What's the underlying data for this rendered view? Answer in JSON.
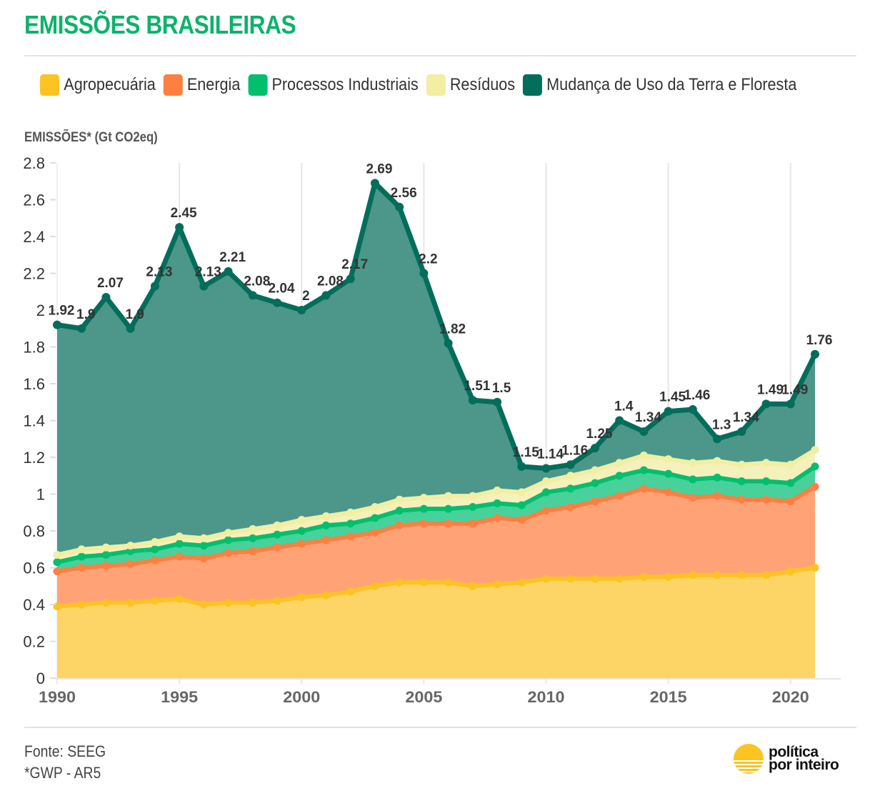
{
  "header": {
    "title": "EMISSÕES BRASILEIRAS"
  },
  "legend": [
    {
      "label": "Agropecuária",
      "color": "#fcc323"
    },
    {
      "label": "Energia",
      "color": "#ff7f41"
    },
    {
      "label": "Processos Industriais",
      "color": "#00bf6f"
    },
    {
      "label": "Resíduos",
      "color": "#f2eea2"
    },
    {
      "label": "Mudança de Uso da Terra e Floresta",
      "color": "#006e5b"
    }
  ],
  "footer": {
    "source": "Fonte: SEEG",
    "note": "*GWP - AR5"
  },
  "logo": {
    "line1": "política",
    "line2": "por inteiro",
    "icon": "sun-logo-icon"
  },
  "chart_data": {
    "type": "area",
    "stacked": true,
    "title": "EMISSÕES BRASILEIRAS",
    "ylabel": "EMISSÕES* (Gt CO2eq)",
    "xlabel": "",
    "ylim": [
      0,
      2.8
    ],
    "yticks": [
      "0",
      "0.2",
      "0.4",
      "0.6",
      "0.8",
      "1",
      "1.2",
      "1.4",
      "1.6",
      "1.8",
      "2",
      "2.2",
      "2.4",
      "2.6",
      "2.8"
    ],
    "xticks": [
      "1990",
      "1995",
      "2000",
      "2005",
      "2010",
      "2015",
      "2020"
    ],
    "grid": "vertical",
    "legend_position": "top",
    "value_mode": "cumulative stack top per year",
    "x": [
      1990,
      1991,
      1992,
      1993,
      1994,
      1995,
      1996,
      1997,
      1998,
      1999,
      2000,
      2001,
      2002,
      2003,
      2004,
      2005,
      2006,
      2007,
      2008,
      2009,
      2010,
      2011,
      2012,
      2013,
      2014,
      2015,
      2016,
      2017,
      2018,
      2019,
      2020,
      2021
    ],
    "series": [
      {
        "name": "Agropecuária",
        "color": "#fcc323",
        "fill": "#fdd466",
        "values": [
          0.39,
          0.4,
          0.41,
          0.41,
          0.42,
          0.43,
          0.4,
          0.41,
          0.41,
          0.42,
          0.44,
          0.45,
          0.47,
          0.5,
          0.52,
          0.52,
          0.52,
          0.5,
          0.51,
          0.52,
          0.54,
          0.54,
          0.54,
          0.54,
          0.55,
          0.55,
          0.56,
          0.56,
          0.56,
          0.56,
          0.58,
          0.6
        ]
      },
      {
        "name": "Energia",
        "color": "#ff7f41",
        "fill": "#ffa376",
        "values": [
          0.58,
          0.6,
          0.61,
          0.62,
          0.64,
          0.66,
          0.65,
          0.68,
          0.69,
          0.71,
          0.73,
          0.75,
          0.77,
          0.79,
          0.83,
          0.84,
          0.84,
          0.84,
          0.87,
          0.86,
          0.91,
          0.93,
          0.96,
          0.99,
          1.03,
          1.01,
          0.98,
          0.99,
          0.97,
          0.97,
          0.96,
          1.04
        ]
      },
      {
        "name": "Processos Industriais",
        "color": "#00bf6f",
        "fill": "#48d19a",
        "values": [
          0.63,
          0.66,
          0.67,
          0.69,
          0.7,
          0.73,
          0.72,
          0.75,
          0.76,
          0.78,
          0.8,
          0.83,
          0.84,
          0.87,
          0.91,
          0.92,
          0.92,
          0.93,
          0.95,
          0.94,
          1.01,
          1.03,
          1.06,
          1.1,
          1.13,
          1.11,
          1.08,
          1.09,
          1.07,
          1.07,
          1.06,
          1.15
        ]
      },
      {
        "name": "Resíduos",
        "color": "#f2eea2",
        "fill": "#f5f1bc",
        "values": [
          0.67,
          0.7,
          0.71,
          0.72,
          0.74,
          0.77,
          0.76,
          0.79,
          0.81,
          0.83,
          0.86,
          0.88,
          0.9,
          0.93,
          0.97,
          0.98,
          0.99,
          0.99,
          1.02,
          1.01,
          1.07,
          1.1,
          1.13,
          1.17,
          1.21,
          1.19,
          1.17,
          1.18,
          1.16,
          1.17,
          1.16,
          1.24
        ]
      },
      {
        "name": "Mudança de Uso da Terra e Floresta",
        "color": "#006e5b",
        "fill": "#4d968a",
        "values": [
          1.92,
          1.9,
          2.07,
          1.9,
          2.13,
          2.45,
          2.13,
          2.21,
          2.08,
          2.04,
          2,
          2.08,
          2.17,
          2.69,
          2.56,
          2.2,
          1.82,
          1.51,
          1.5,
          1.15,
          1.14,
          1.16,
          1.25,
          1.4,
          1.34,
          1.45,
          1.46,
          1.3,
          1.34,
          1.49,
          1.49,
          1.76
        ],
        "data_labels": [
          "1.92",
          "1.9",
          "2.07",
          "1.9",
          "2.13",
          "2.45",
          "2.13",
          "2.21",
          "2.08",
          "2.04",
          "2",
          "2.08",
          "2.17",
          "2.69",
          "2.56",
          "2.2",
          "1.82",
          "1.51",
          "1.5",
          "1.15",
          "1.14",
          "1.16",
          "1.25",
          "1.4",
          "1.34",
          "1.45",
          "1.46",
          "1.3",
          "1.34",
          "1.49",
          "1.49",
          "1.76"
        ]
      }
    ]
  }
}
